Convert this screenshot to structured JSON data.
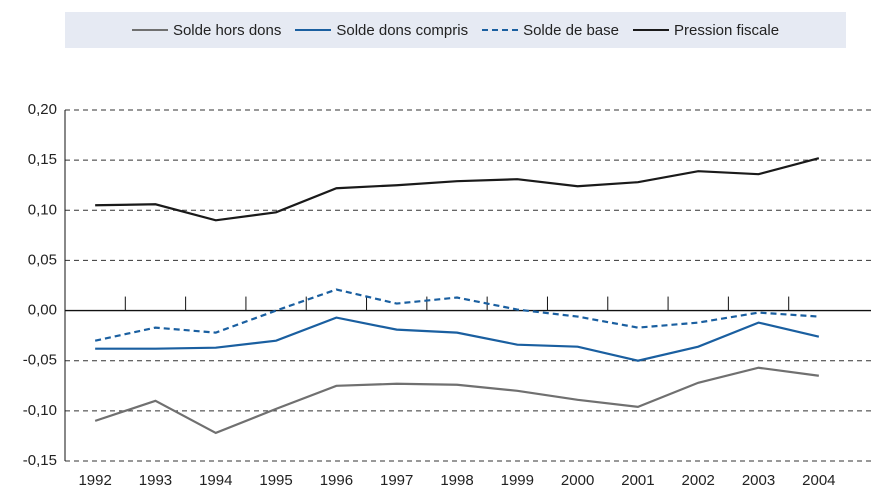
{
  "chart_data": {
    "type": "line",
    "categories": [
      "1992",
      "1993",
      "1994",
      "1995",
      "1996",
      "1997",
      "1998",
      "1999",
      "2000",
      "2001",
      "2002",
      "2003",
      "2004"
    ],
    "series": [
      {
        "name": "Solde hors dons",
        "color": "#707070",
        "style": "solid",
        "values": [
          -0.11,
          -0.09,
          -0.122,
          -0.098,
          -0.075,
          -0.073,
          -0.074,
          -0.08,
          -0.089,
          -0.096,
          -0.072,
          -0.057,
          -0.065
        ]
      },
      {
        "name": "Solde dons compris",
        "color": "#1a5fa0",
        "style": "solid",
        "values": [
          -0.038,
          -0.038,
          -0.037,
          -0.03,
          -0.007,
          -0.019,
          -0.022,
          -0.034,
          -0.036,
          -0.05,
          -0.036,
          -0.012,
          -0.026
        ]
      },
      {
        "name": "Solde de base",
        "color": "#1a5fa0",
        "style": "dashed",
        "values": [
          -0.03,
          -0.017,
          -0.022,
          0.0,
          0.021,
          0.007,
          0.013,
          0.001,
          -0.006,
          -0.017,
          -0.012,
          -0.002,
          -0.006
        ]
      },
      {
        "name": "Pression fiscale",
        "color": "#1a1a1a",
        "style": "solid",
        "values": [
          0.105,
          0.106,
          0.09,
          0.098,
          0.122,
          0.125,
          0.129,
          0.131,
          0.124,
          0.128,
          0.139,
          0.136,
          0.152
        ]
      }
    ],
    "ylim": [
      -0.15,
      0.2
    ],
    "yticks": [
      {
        "value": -0.15,
        "label": "-0,15"
      },
      {
        "value": -0.1,
        "label": "-0,10"
      },
      {
        "value": -0.05,
        "label": "-0,05"
      },
      {
        "value": 0,
        "label": "0,00"
      },
      {
        "value": 0.05,
        "label": "0,05"
      },
      {
        "value": 0.1,
        "label": "0,10"
      },
      {
        "value": 0.15,
        "label": "0,15"
      },
      {
        "value": 0.2,
        "label": "0,20"
      }
    ],
    "grid": true,
    "legend": "top"
  }
}
